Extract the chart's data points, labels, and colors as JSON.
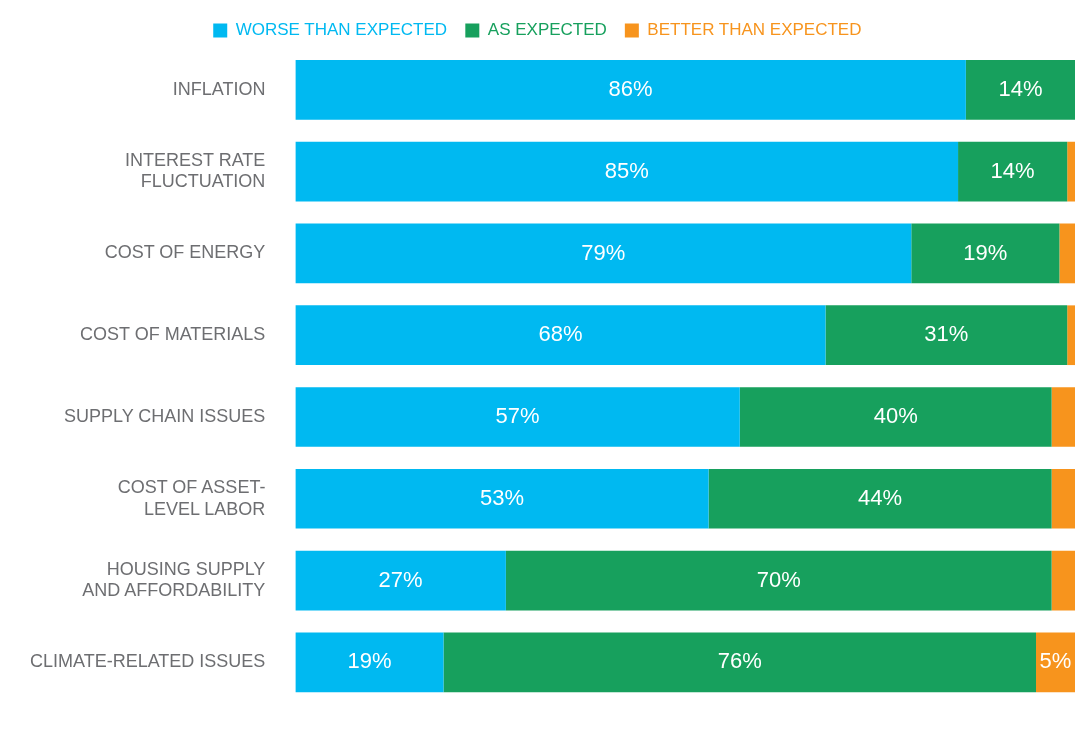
{
  "chart_data": {
    "type": "bar",
    "orientation": "horizontal",
    "stacked": true,
    "legend": "top",
    "tick_labels": "y",
    "categories": [
      "INFLATION",
      "INTEREST RATE FLUCTUATION",
      "COST OF ENERGY",
      "COST OF MATERIALS",
      "SUPPLY CHAIN ISSUES",
      "COST OF ASSET-LEVEL LABOR",
      "HOUSING SUPPLY AND AFFORDABILITY",
      "CLIMATE-RELATED ISSUES"
    ],
    "xlim": [
      0,
      100
    ],
    "series": [
      {
        "name": "WORSE THAN EXPECTED",
        "color": "#00b9f1",
        "values": [
          86,
          85,
          79,
          68,
          57,
          53,
          27,
          19
        ],
        "value_labels": [
          "86%",
          "85%",
          "79%",
          "68%",
          "57%",
          "53%",
          "27%",
          "19%"
        ]
      },
      {
        "name": "AS EXPECTED",
        "color": "#17a05d",
        "values": [
          14,
          14,
          19,
          31,
          40,
          44,
          70,
          76
        ],
        "value_labels": [
          "14%",
          "14%",
          "19%",
          "31%",
          "40%",
          "44%",
          "70%",
          "76%"
        ]
      },
      {
        "name": "BETTER THAN EXPECTED",
        "color": "#f7941d",
        "values": [
          0,
          1,
          2,
          1,
          3,
          3,
          3,
          5
        ],
        "value_labels": [
          null,
          null,
          null,
          null,
          null,
          null,
          null,
          "5%"
        ]
      }
    ]
  }
}
